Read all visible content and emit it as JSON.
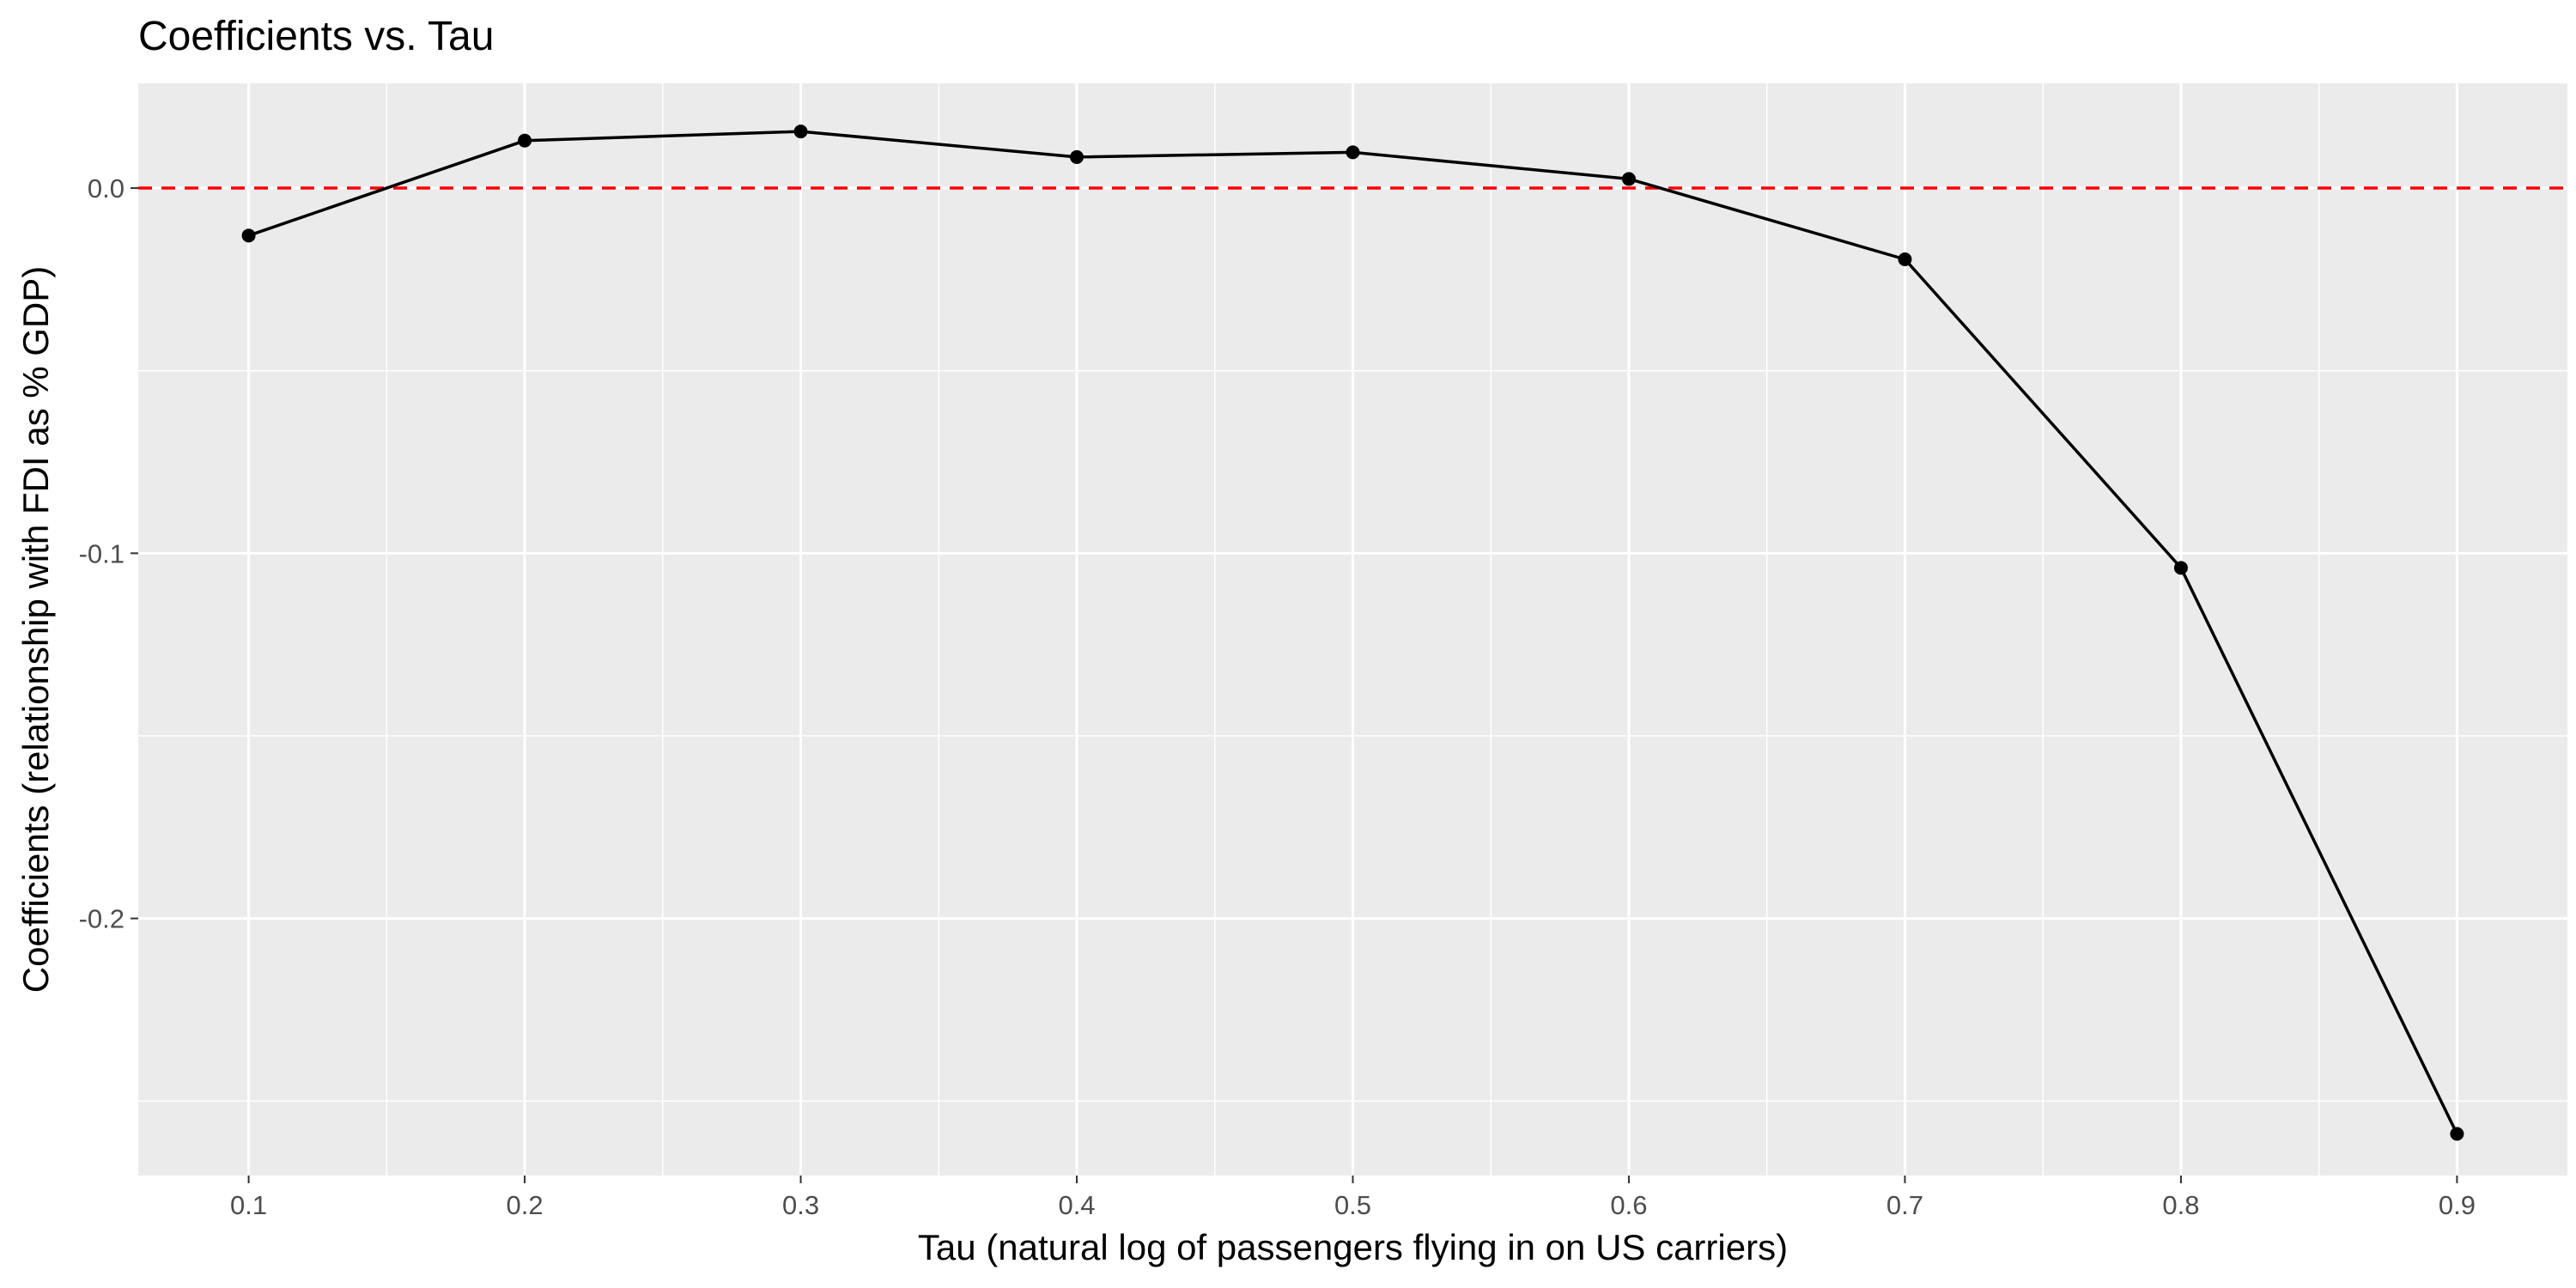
{
  "chart_data": {
    "type": "line",
    "title": "Coefficients vs. Tau",
    "xlabel": "Tau (natural log of passengers flying in on US carriers)",
    "ylabel": "Coefficients (relationship with FDI as % GDP)",
    "x": [
      0.1,
      0.2,
      0.3,
      0.4,
      0.5,
      0.6,
      0.7,
      0.8,
      0.9
    ],
    "y": [
      -0.013,
      0.013,
      0.0155,
      0.0085,
      0.0098,
      0.0025,
      -0.0195,
      -0.104,
      -0.259
    ],
    "x_ticks": [
      "0.1",
      "0.2",
      "0.3",
      "0.4",
      "0.5",
      "0.6",
      "0.7",
      "0.8",
      "0.9"
    ],
    "y_ticks": [
      "-0.2",
      "-0.1",
      "0.0"
    ],
    "y_tick_values": [
      -0.2,
      -0.1,
      0.0
    ],
    "xlim": [
      0.06,
      0.94
    ],
    "ylim": [
      -0.2704,
      0.0287
    ],
    "reference_line": {
      "y": 0.0,
      "color": "#ff0000",
      "style": "dashed"
    },
    "line_color": "#000000",
    "panel_color": "#ebebeb",
    "grid_color": "#ffffff",
    "grid": true,
    "legend": "none"
  }
}
